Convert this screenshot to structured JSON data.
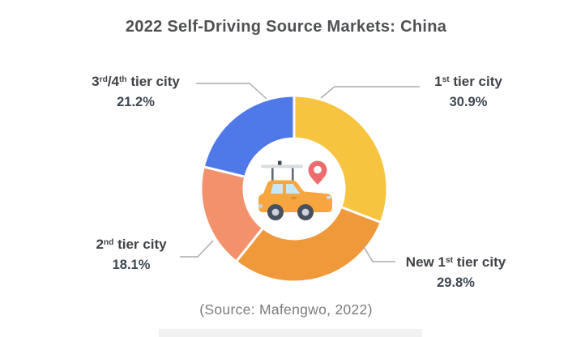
{
  "chart_data": {
    "type": "pie",
    "subtype": "donut",
    "title": "2022 Self-Driving Source Markets: China",
    "source": "(Source: Mafengwo, 2022)",
    "center_icon": "self-driving-car-with-location-pin-icon",
    "start_angle_deg": 0,
    "direction": "clockwise",
    "donut_hole_ratio": 0.54,
    "legend_position": "callout-labels",
    "grid": false,
    "slices": [
      {
        "label": "1st tier city",
        "label_parts": [
          [
            "1"
          ],
          [
            "st",
            "sup"
          ],
          [
            " tier city"
          ]
        ],
        "value_pct": 30.9,
        "display_value": "30.9%",
        "color": "#F7C440"
      },
      {
        "label": "New 1st tier city",
        "label_parts": [
          [
            "New 1"
          ],
          [
            "st",
            "sup"
          ],
          [
            " tier city"
          ]
        ],
        "value_pct": 29.8,
        "display_value": "29.8%",
        "color": "#F0993B"
      },
      {
        "label": "2nd tier city",
        "label_parts": [
          [
            "2"
          ],
          [
            "nd",
            "sup"
          ],
          [
            " tier city"
          ]
        ],
        "value_pct": 18.1,
        "display_value": "18.1%",
        "color": "#F2916C"
      },
      {
        "label": "3rd/4th tier city",
        "label_parts": [
          [
            "3"
          ],
          [
            "rd",
            "sup"
          ],
          [
            "/4"
          ],
          [
            "th",
            "sup"
          ],
          [
            " tier city"
          ]
        ],
        "value_pct": 21.2,
        "display_value": "21.2%",
        "color": "#4F78E9"
      }
    ]
  },
  "colors": {
    "title_text": "#4E5052",
    "label_text": "#3F4347",
    "value_text": "#3E4754",
    "source_text": "#7C7C7E",
    "leader_line": "#ACACAC",
    "slice_gap": "#FFFFFF",
    "bottom_strip": "#F1F1F1",
    "background": "#FFFFFF"
  }
}
